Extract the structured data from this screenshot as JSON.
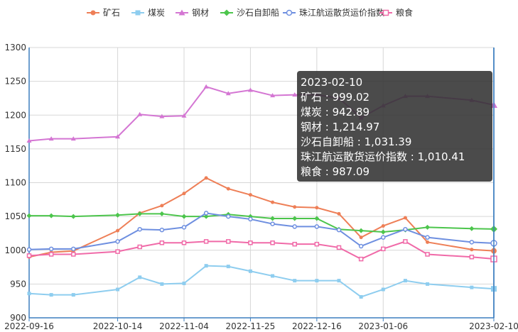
{
  "chart_data": {
    "type": "line",
    "x": [
      "2022-09-16",
      "2022-09-23",
      "2022-09-30",
      "2022-10-14",
      "2022-10-21",
      "2022-10-28",
      "2022-11-04",
      "2022-11-11",
      "2022-11-18",
      "2022-11-25",
      "2022-12-02",
      "2022-12-09",
      "2022-12-16",
      "2022-12-23",
      "2022-12-30",
      "2023-01-06",
      "2023-01-13",
      "2023-01-20",
      "2023-02-03",
      "2023-02-10"
    ],
    "xticks": [
      "2022-09-16",
      "2022-10-14",
      "2022-11-04",
      "2022-11-25",
      "2022-12-16",
      "2023-01-06",
      "2023-02-10"
    ],
    "ylim": [
      900,
      1300
    ],
    "yticks": [
      900,
      950,
      1000,
      1050,
      1100,
      1150,
      1200,
      1250,
      1300
    ],
    "grid": true,
    "legend_position": "top",
    "series": [
      {
        "name": "矿石",
        "color": "#ee7f57",
        "marker": "circle",
        "values": [
          990,
          997,
          999,
          1029,
          1055,
          1066,
          1084,
          1107,
          1091,
          1082,
          1071,
          1064,
          1063,
          1054,
          1019,
          1036,
          1048,
          1012,
          1001,
          999.02
        ]
      },
      {
        "name": "煤炭",
        "color": "#8ecdef",
        "marker": "square",
        "values": [
          936,
          934,
          934,
          942,
          960,
          950,
          951,
          977,
          976,
          969,
          962,
          955,
          955,
          955,
          931,
          942,
          955,
          950,
          945,
          942.89
        ]
      },
      {
        "name": "钢材",
        "color": "#d476d3",
        "marker": "triangle",
        "values": [
          1162,
          1165,
          1165,
          1168,
          1201,
          1198,
          1199,
          1242,
          1232,
          1237,
          1229,
          1230,
          1230,
          1225,
          1196,
          1214,
          1228,
          1228,
          1222,
          1214.97
        ]
      },
      {
        "name": "沙石自卸船",
        "color": "#4cc54c",
        "marker": "diamond",
        "values": [
          1051,
          1051,
          1050,
          1052,
          1054,
          1054,
          1050,
          1050,
          1053,
          1050,
          1047,
          1047,
          1047,
          1031,
          1029,
          1027,
          1030,
          1034,
          1032,
          1031.39
        ]
      },
      {
        "name": "珠江航运散货运价指数",
        "color": "#6e8fe0",
        "marker": "circle-open",
        "values": [
          1001,
          1002,
          1002,
          1013,
          1031,
          1030,
          1034,
          1055,
          1050,
          1046,
          1039,
          1035,
          1035,
          1030,
          1006,
          1019,
          1031,
          1019,
          1012,
          1010.41
        ]
      },
      {
        "name": "粮食",
        "color": "#f06aa8",
        "marker": "square-open",
        "values": [
          992,
          994,
          994,
          998,
          1005,
          1011,
          1011,
          1013,
          1013,
          1011,
          1011,
          1009,
          1009,
          1004,
          987,
          1002,
          1013,
          994,
          990,
          987.09
        ]
      }
    ]
  },
  "tooltip": {
    "date": "2023-02-10",
    "rows": [
      "矿石 : 999.02",
      "煤炭 : 942.89",
      "钢材 : 1,214.97",
      "沙石自卸船 : 1,031.39",
      "珠江航运散货运价指数 : 1,010.41",
      "粮食 : 987.09"
    ]
  }
}
